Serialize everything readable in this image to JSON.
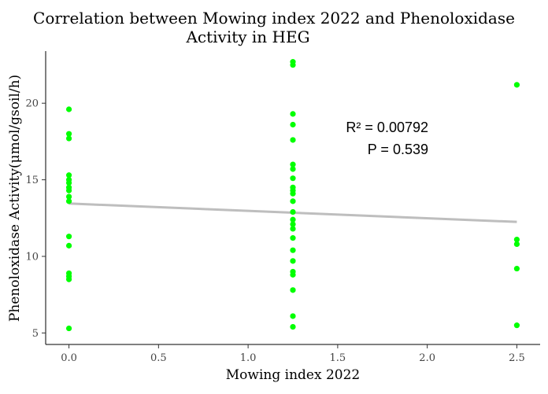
{
  "chart_data": {
    "type": "scatter",
    "title_line1": "Correlation between Mowing index 2022 and Phenoloxidase",
    "title_line2": "Activity in HEG",
    "xlabel": "Mowing index 2022",
    "ylabel": "Phenoloxidase Activity(μmol/gsoil/h)",
    "xlim": [
      -0.13,
      2.63
    ],
    "ylim": [
      4.25,
      23.4
    ],
    "x_ticks": [
      0.0,
      0.5,
      1.0,
      1.5,
      2.0,
      2.5
    ],
    "x_tick_labels": [
      "0.0",
      "0.5",
      "1.0",
      "1.5",
      "2.0",
      "2.5"
    ],
    "y_ticks": [
      5,
      10,
      15,
      20
    ],
    "y_tick_labels": [
      "5",
      "10",
      "15",
      "20"
    ],
    "grid": false,
    "point_color": "#00ff00",
    "fit_line_color": "#bebebe",
    "fit_line": {
      "x": [
        0.0,
        2.5
      ],
      "y": [
        13.45,
        12.25
      ]
    },
    "annotations": [
      "R² = 0.00792",
      "P = 0.539"
    ],
    "points": [
      {
        "x": 0.0,
        "y": 19.6
      },
      {
        "x": 0.0,
        "y": 18.0
      },
      {
        "x": 0.0,
        "y": 17.7
      },
      {
        "x": 0.0,
        "y": 15.3
      },
      {
        "x": 0.0,
        "y": 15.0
      },
      {
        "x": 0.0,
        "y": 14.8
      },
      {
        "x": 0.0,
        "y": 14.5
      },
      {
        "x": 0.0,
        "y": 14.3
      },
      {
        "x": 0.0,
        "y": 13.9
      },
      {
        "x": 0.0,
        "y": 13.6
      },
      {
        "x": 0.0,
        "y": 11.3
      },
      {
        "x": 0.0,
        "y": 10.7
      },
      {
        "x": 0.0,
        "y": 8.9
      },
      {
        "x": 0.0,
        "y": 8.7
      },
      {
        "x": 0.0,
        "y": 8.5
      },
      {
        "x": 0.0,
        "y": 5.3
      },
      {
        "x": 1.25,
        "y": 22.7
      },
      {
        "x": 1.25,
        "y": 22.5
      },
      {
        "x": 1.25,
        "y": 19.3
      },
      {
        "x": 1.25,
        "y": 18.6
      },
      {
        "x": 1.25,
        "y": 17.6
      },
      {
        "x": 1.25,
        "y": 16.0
      },
      {
        "x": 1.25,
        "y": 15.7
      },
      {
        "x": 1.25,
        "y": 15.1
      },
      {
        "x": 1.25,
        "y": 14.5
      },
      {
        "x": 1.25,
        "y": 14.3
      },
      {
        "x": 1.25,
        "y": 14.1
      },
      {
        "x": 1.25,
        "y": 13.6
      },
      {
        "x": 1.25,
        "y": 12.9
      },
      {
        "x": 1.25,
        "y": 12.4
      },
      {
        "x": 1.25,
        "y": 12.1
      },
      {
        "x": 1.25,
        "y": 11.8
      },
      {
        "x": 1.25,
        "y": 11.2
      },
      {
        "x": 1.25,
        "y": 10.4
      },
      {
        "x": 1.25,
        "y": 9.7
      },
      {
        "x": 1.25,
        "y": 9.0
      },
      {
        "x": 1.25,
        "y": 8.8
      },
      {
        "x": 1.25,
        "y": 7.8
      },
      {
        "x": 1.25,
        "y": 6.1
      },
      {
        "x": 1.25,
        "y": 5.4
      },
      {
        "x": 2.5,
        "y": 21.2
      },
      {
        "x": 2.5,
        "y": 11.1
      },
      {
        "x": 2.5,
        "y": 10.8
      },
      {
        "x": 2.5,
        "y": 9.2
      },
      {
        "x": 2.5,
        "y": 5.5
      }
    ]
  }
}
